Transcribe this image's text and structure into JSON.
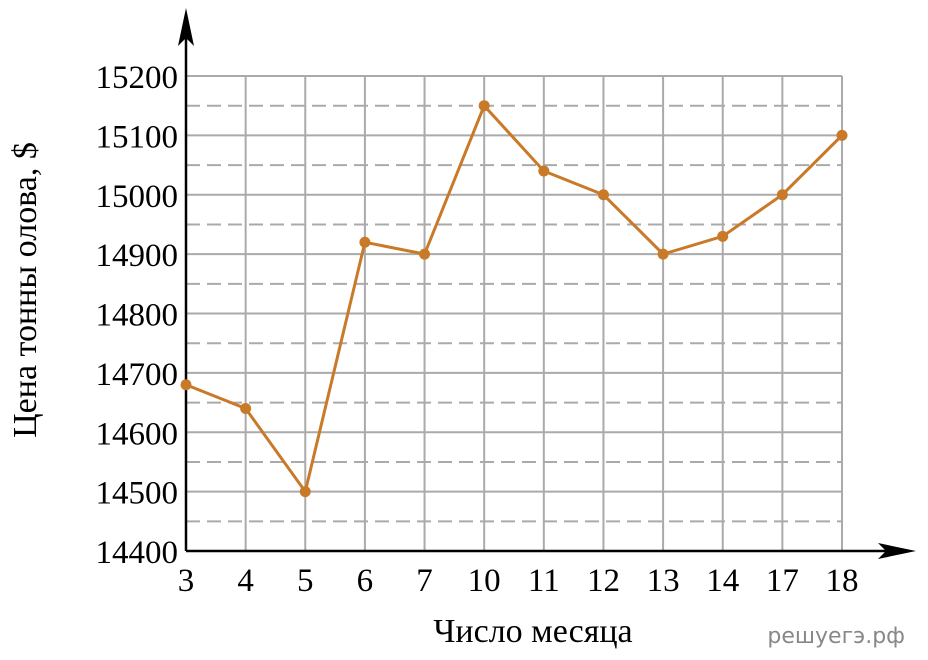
{
  "chart_data": {
    "type": "line",
    "x_label": "Число месяца",
    "y_label": "Цена тонны олова, $",
    "watermark": "решуегэ.рф",
    "categories": [
      "3",
      "4",
      "5",
      "6",
      "7",
      "10",
      "11",
      "12",
      "13",
      "14",
      "17",
      "18"
    ],
    "values": [
      14680,
      14640,
      14500,
      14920,
      14900,
      15150,
      15040,
      15000,
      14900,
      14930,
      15000,
      15100
    ],
    "color": "#c87a28",
    "ylim": [
      14400,
      15200
    ],
    "yticks": [
      14400,
      14500,
      14600,
      14700,
      14800,
      14900,
      15000,
      15100,
      15200
    ],
    "minor_yticks": [
      14450,
      14550,
      14650,
      14750,
      14850,
      14950,
      15050,
      15150
    ],
    "grid": true
  }
}
